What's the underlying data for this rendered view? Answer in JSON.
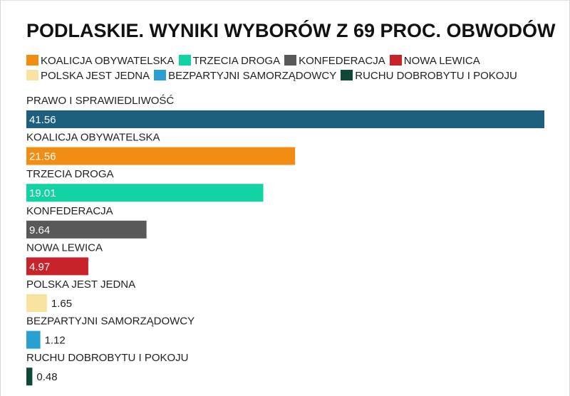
{
  "chart_data": {
    "type": "bar",
    "orientation": "horizontal",
    "title": "PODLASKIE. WYNIKI WYBORÓW Z 69 PROC. OBWODÓW",
    "categories": [
      "PRAWO I SPRAWIEDLIWOŚĆ",
      "KOALICJA OBYWATELSKA",
      "TRZECIA DROGA",
      "KONFEDERACJA",
      "NOWA LEWICA",
      "POLSKA JEST JEDNA",
      "BEZPARTYJNI SAMORZĄDOWCY",
      "RUCHU DOBROBYTU I POKOJU"
    ],
    "values": [
      41.56,
      21.56,
      19.01,
      9.64,
      4.97,
      1.65,
      1.12,
      0.48
    ],
    "value_labels": [
      "41.56",
      "21.56",
      "19.01",
      "9.64",
      "4.97",
      "1.65",
      "1.12",
      "0.48"
    ],
    "colors": [
      "#1d5f7d",
      "#f08d12",
      "#12d3a3",
      "#595959",
      "#c8222b",
      "#f9e3a1",
      "#2a9fd2",
      "#0e4a33"
    ],
    "legend": [
      {
        "label": "KOALICJA OBYWATELSKA",
        "color": "#f08d12"
      },
      {
        "label": "TRZECIA DROGA",
        "color": "#12d3a3"
      },
      {
        "label": "KONFEDERACJA",
        "color": "#595959"
      },
      {
        "label": "NOWA LEWICA",
        "color": "#c8222b"
      },
      {
        "label": "POLSKA JEST JEDNA",
        "color": "#f9e3a1"
      },
      {
        "label": "BEZPARTYJNI SAMORZĄDOWCY",
        "color": "#2a9fd2"
      },
      {
        "label": "RUCHU DOBROBYTU I POKOJU",
        "color": "#0e4a33"
      }
    ],
    "legend_placement": "top",
    "xlim": [
      0,
      41.56
    ],
    "grid": false
  }
}
